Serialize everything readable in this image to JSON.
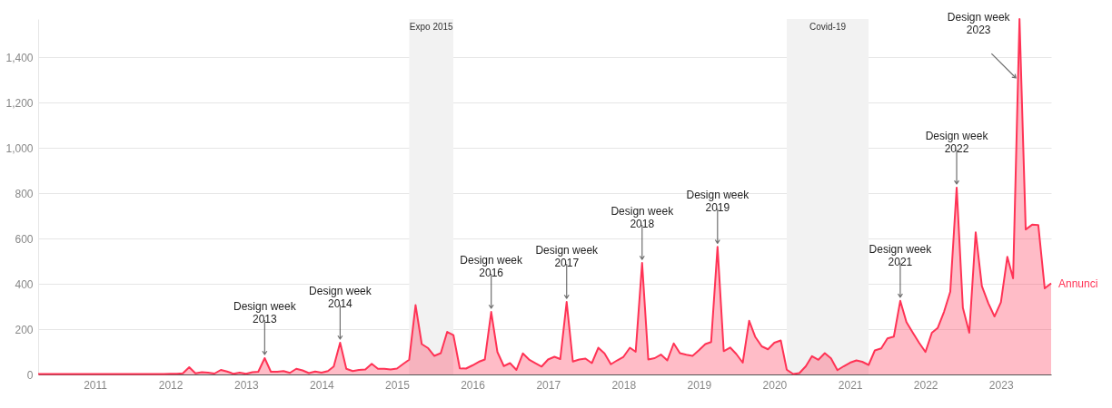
{
  "chart_data": {
    "type": "area",
    "x": [
      "2010-04",
      "2010-05",
      "2010-06",
      "2010-07",
      "2010-08",
      "2010-09",
      "2010-10",
      "2010-11",
      "2010-12",
      "2011-01",
      "2011-02",
      "2011-03",
      "2011-04",
      "2011-05",
      "2011-06",
      "2011-07",
      "2011-08",
      "2011-09",
      "2011-10",
      "2011-11",
      "2011-12",
      "2012-01",
      "2012-02",
      "2012-03",
      "2012-04",
      "2012-05",
      "2012-06",
      "2012-07",
      "2012-08",
      "2012-09",
      "2012-10",
      "2012-11",
      "2012-12",
      "2013-01",
      "2013-02",
      "2013-03",
      "2013-04",
      "2013-05",
      "2013-06",
      "2013-07",
      "2013-08",
      "2013-09",
      "2013-10",
      "2013-11",
      "2013-12",
      "2014-01",
      "2014-02",
      "2014-03",
      "2014-04",
      "2014-05",
      "2014-06",
      "2014-07",
      "2014-08",
      "2014-09",
      "2014-10",
      "2014-11",
      "2014-12",
      "2015-01",
      "2015-02",
      "2015-03",
      "2015-04",
      "2015-05",
      "2015-06",
      "2015-07",
      "2015-08",
      "2015-09",
      "2015-10",
      "2015-11",
      "2015-12",
      "2016-01",
      "2016-02",
      "2016-03",
      "2016-04",
      "2016-05",
      "2016-06",
      "2016-07",
      "2016-08",
      "2016-09",
      "2016-10",
      "2016-11",
      "2016-12",
      "2017-01",
      "2017-02",
      "2017-03",
      "2017-04",
      "2017-05",
      "2017-06",
      "2017-07",
      "2017-08",
      "2017-09",
      "2017-10",
      "2017-11",
      "2017-12",
      "2018-01",
      "2018-02",
      "2018-03",
      "2018-04",
      "2018-05",
      "2018-06",
      "2018-07",
      "2018-08",
      "2018-09",
      "2018-10",
      "2018-11",
      "2018-12",
      "2019-01",
      "2019-02",
      "2019-03",
      "2019-04",
      "2019-05",
      "2019-06",
      "2019-07",
      "2019-08",
      "2019-09",
      "2019-10",
      "2019-11",
      "2019-12",
      "2020-01",
      "2020-02",
      "2020-03",
      "2020-04",
      "2020-05",
      "2020-06",
      "2020-07",
      "2020-08",
      "2020-09",
      "2020-10",
      "2020-11",
      "2020-12",
      "2021-01",
      "2021-02",
      "2021-03",
      "2021-04",
      "2021-05",
      "2021-06",
      "2021-07",
      "2021-08",
      "2021-09",
      "2021-10",
      "2021-11",
      "2021-12",
      "2022-01",
      "2022-02",
      "2022-03",
      "2022-04",
      "2022-05",
      "2022-06",
      "2022-07",
      "2022-08",
      "2022-09",
      "2022-10",
      "2022-11",
      "2022-12",
      "2023-01",
      "2023-02",
      "2023-03",
      "2023-04",
      "2023-05",
      "2023-06",
      "2023-07",
      "2023-08",
      "2023-09"
    ],
    "series": [
      {
        "name": "Annunci",
        "color": "#ff3355",
        "values": [
          2,
          2,
          2,
          2,
          2,
          2,
          2,
          2,
          2,
          2,
          2,
          2,
          2,
          2,
          2,
          2,
          2,
          2,
          2,
          2,
          2,
          3,
          3,
          5,
          32,
          5,
          10,
          8,
          4,
          20,
          13,
          3,
          8,
          3,
          10,
          12,
          72,
          12,
          12,
          15,
          7,
          25,
          18,
          6,
          13,
          8,
          15,
          35,
          140,
          25,
          15,
          20,
          22,
          47,
          25,
          25,
          22,
          26,
          47,
          65,
          306,
          134,
          116,
          82,
          94,
          188,
          174,
          27,
          26,
          40,
          56,
          66,
          276,
          99,
          37,
          50,
          20,
          93,
          66,
          50,
          35,
          66,
          78,
          68,
          320,
          57,
          66,
          70,
          50,
          118,
          93,
          45,
          62,
          78,
          118,
          100,
          492,
          66,
          72,
          88,
          62,
          137,
          94,
          87,
          82,
          107,
          134,
          143,
          563,
          103,
          119,
          90,
          52,
          237,
          165,
          124,
          111,
          140,
          150,
          21,
          2,
          6,
          36,
          81,
          65,
          94,
          71,
          19,
          36,
          52,
          62,
          56,
          42,
          106,
          115,
          159,
          167,
          325,
          231,
          184,
          140,
          99,
          184,
          205,
          277,
          365,
          825,
          294,
          184,
          627,
          390,
          315,
          256,
          319,
          519,
          424,
          1569,
          640,
          661,
          659,
          380,
          402
        ]
      }
    ],
    "xlim": [
      "2010-04",
      "2023-09"
    ],
    "xticks": [
      {
        "value": "2011",
        "label": "2011"
      },
      {
        "value": "2012",
        "label": "2012"
      },
      {
        "value": "2013",
        "label": "2013"
      },
      {
        "value": "2014",
        "label": "2014"
      },
      {
        "value": "2015",
        "label": "2015"
      },
      {
        "value": "2016",
        "label": "2016"
      },
      {
        "value": "2017",
        "label": "2017"
      },
      {
        "value": "2018",
        "label": "2018"
      },
      {
        "value": "2019",
        "label": "2019"
      },
      {
        "value": "2020",
        "label": "2020"
      },
      {
        "value": "2021",
        "label": "2021"
      },
      {
        "value": "2022",
        "label": "2022"
      },
      {
        "value": "2023",
        "label": "2023"
      }
    ],
    "ylim": [
      0,
      1569
    ],
    "yticks": [
      0,
      200,
      400,
      600,
      800,
      {
        "value": 1000,
        "label": "1,000"
      },
      {
        "value": 1200,
        "label": "1,200"
      },
      {
        "value": 1400,
        "label": "1,400"
      }
    ],
    "grid": "y",
    "legend": false,
    "bands": [
      {
        "axis": "x",
        "from": "2015-03",
        "to": "2015-10",
        "label": "Expo 2015",
        "color": "#f2f2f2"
      },
      {
        "axis": "x",
        "from": "2020-03",
        "to": "2021-04",
        "label": "Covid-19",
        "color": "#f2f2f2"
      }
    ],
    "annotations": [
      {
        "text": "Design week\n2013",
        "x": "2013-04",
        "y": 72
      },
      {
        "text": "Design week\n2014",
        "x": "2014-04",
        "y": 140
      },
      {
        "text": "Design week\n2016",
        "x": "2016-04",
        "y": 276
      },
      {
        "text": "Design week\n2017",
        "x": "2017-04",
        "y": 320
      },
      {
        "text": "Design week\n2018",
        "x": "2018-04",
        "y": 492
      },
      {
        "text": "Design week\n2019",
        "x": "2019-04",
        "y": 563
      },
      {
        "text": "Design week\n2021",
        "x": "2021-09",
        "y": 325
      },
      {
        "text": "Design week\n2022",
        "x": "2022-06",
        "y": 825
      },
      {
        "text": "Design week\n2023",
        "x": "2023-04",
        "y": 1569
      }
    ]
  }
}
